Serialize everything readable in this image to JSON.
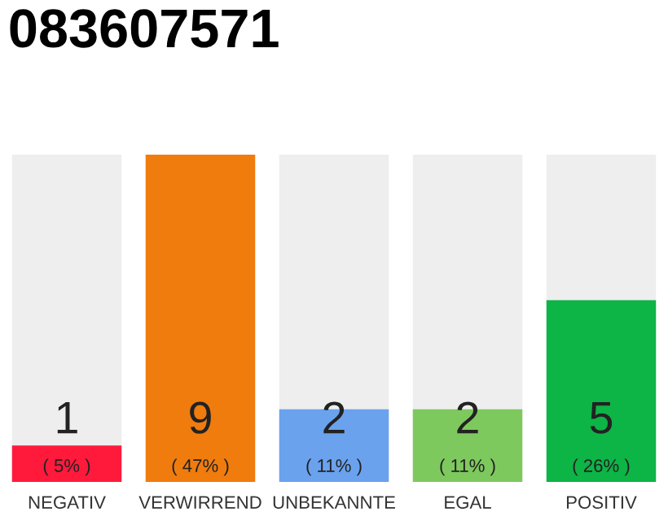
{
  "chart_data": {
    "type": "bar",
    "title": "083607571",
    "categories": [
      "NEGATIV",
      "VERWIRREND",
      "UNBEKANNTE",
      "EGAL",
      "POSITIV"
    ],
    "values": [
      1,
      9,
      2,
      2,
      5
    ],
    "colors": [
      "#ff1a3c",
      "#f07c0e",
      "#6aa2ee",
      "#7ec95e",
      "#0db446"
    ],
    "ylim": [
      0,
      9
    ],
    "tick_labels": "x",
    "grid": false,
    "legend": false,
    "data_labels": true,
    "annotations": [
      "( 5% )",
      "( 47% )",
      "( 11% )",
      "( 11% )",
      "( 26% )"
    ]
  }
}
